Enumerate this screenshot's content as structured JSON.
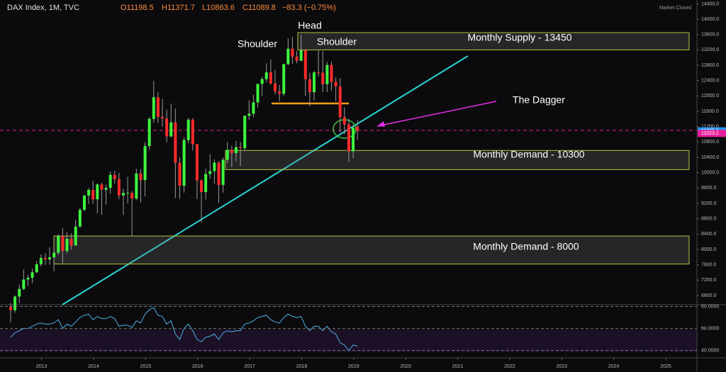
{
  "chart_data": {
    "type": "candlestick",
    "title": "DAX Index, 1M, TVC",
    "ohlc_labels": [
      "O11198.5",
      "H11371.7",
      "L10863.6",
      "C11089.8",
      "−83.3 (−0.75%)"
    ],
    "status": "Market Closed",
    "annotations": [
      "Shoulder",
      "Head",
      "Shoulder",
      "Monthly Supply - 13450",
      "The Dagger",
      "Monthly Demand - 10300",
      "Monthly Demand - 8000"
    ],
    "zones": [
      {
        "top": 13650,
        "bottom": 13200
      },
      {
        "top": 10580,
        "bottom": 10080
      },
      {
        "top": 8350,
        "bottom": 7620
      }
    ],
    "price_tags": [
      {
        "value": 11089.8,
        "label": "11089.8",
        "color": "#2196f3"
      },
      {
        "value": 11023.2,
        "label": "11023.2",
        "color": "#e91e9c"
      }
    ],
    "open": [
      6500,
      6416,
      6772,
      6970,
      7216,
      7260,
      7405,
      7612,
      7776,
      7741,
      7795,
      7914,
      8348,
      7959,
      8276,
      8103,
      8594,
      9033,
      9405,
      9552,
      9306,
      9692,
      9556,
      9603,
      9943,
      9833,
      9407,
      9470,
      9474,
      9327,
      9980,
      9806,
      10694,
      11402,
      11966,
      11454,
      11414,
      10945,
      11309,
      10259,
      9660,
      10850,
      11382,
      10743,
      9798,
      9495,
      9966,
      10039,
      10263,
      9680,
      10337,
      10593,
      10511,
      10665,
      10640,
      11481,
      11535,
      11834,
      12313,
      12438,
      12615,
      12325,
      12118,
      12056,
      12829,
      13230,
      13024,
      12918,
      13189,
      12436,
      12097,
      12612,
      12605,
      12306,
      12806,
      12364,
      12247,
      11447,
      11257,
      10559,
      11198.5
    ],
    "high": [
      6600,
      6800,
      7080,
      7480,
      7340,
      7500,
      7700,
      7870,
      7900,
      8060,
      8050,
      8400,
      8560,
      8450,
      8420,
      8770,
      9080,
      9420,
      9600,
      9790,
      9720,
      9740,
      9690,
      10030,
      10050,
      10000,
      9580,
      9890,
      9520,
      10100,
      10090,
      10800,
      11450,
      12390,
      12100,
      11920,
      11640,
      11800,
      11670,
      10400,
      10920,
      11430,
      11420,
      10750,
      9830,
      10100,
      10480,
      10350,
      10300,
      10400,
      10800,
      10700,
      10830,
      10800,
      11500,
      11890,
      12030,
      12320,
      12500,
      12850,
      12950,
      12680,
      12290,
      12840,
      13500,
      13530,
      13170,
      13600,
      13210,
      12600,
      12650,
      13200,
      13170,
      12890,
      12890,
      12480,
      12460,
      11700,
      11400,
      11250,
      11371.7
    ],
    "low": [
      6100,
      6350,
      6600,
      6930,
      7050,
      7120,
      7380,
      7560,
      7600,
      7600,
      7430,
      7860,
      7640,
      7900,
      8000,
      8100,
      8570,
      9000,
      9190,
      9190,
      8940,
      8900,
      9170,
      9450,
      9720,
      9310,
      8900,
      9200,
      8350,
      9280,
      9220,
      9380,
      10600,
      11300,
      11300,
      11200,
      10790,
      10920,
      9340,
      9320,
      9480,
      10770,
      10580,
      9310,
      8700,
      9300,
      9840,
      9710,
      9210,
      9480,
      10250,
      10150,
      10300,
      10170,
      10560,
      11380,
      11450,
      11700,
      12000,
      12350,
      12300,
      12040,
      11860,
      12000,
      12800,
      12840,
      12850,
      12900,
      12000,
      11730,
      11880,
      12500,
      12100,
      12100,
      12140,
      11860,
      11050,
      11000,
      10280,
      10380,
      10863.6
    ],
    "close": [
      6416,
      6772,
      6970,
      7216,
      7260,
      7405,
      7612,
      7776,
      7741,
      7795,
      7914,
      8348,
      7959,
      8276,
      8103,
      8594,
      9033,
      9405,
      9552,
      9306,
      9692,
      9556,
      9603,
      9943,
      9833,
      9407,
      9470,
      9474,
      9327,
      9980,
      9806,
      10694,
      11402,
      11966,
      11454,
      11414,
      10945,
      11309,
      10259,
      9660,
      10850,
      11382,
      10743,
      9798,
      9495,
      9966,
      10039,
      10263,
      9680,
      10337,
      10593,
      10511,
      10665,
      10640,
      11481,
      11535,
      11834,
      12313,
      12438,
      12615,
      12325,
      12118,
      12056,
      12829,
      13230,
      13024,
      12918,
      13189,
      12436,
      12097,
      12612,
      12605,
      12306,
      12806,
      12364,
      12247,
      11447,
      11257,
      10559,
      11173,
      11089.8
    ],
    "rsi": [
      52,
      56,
      58,
      60,
      60,
      62,
      64,
      65,
      64,
      64,
      65,
      68,
      60,
      64,
      62,
      66,
      70,
      72,
      73,
      68,
      71,
      69,
      69,
      71,
      69,
      62,
      63,
      63,
      61,
      67,
      65,
      73,
      77,
      79,
      72,
      71,
      64,
      67,
      55,
      50,
      60,
      64,
      58,
      50,
      48,
      52,
      53,
      55,
      50,
      56,
      58,
      57,
      58,
      58,
      64,
      65,
      67,
      70,
      71,
      72,
      68,
      66,
      65,
      70,
      73,
      71,
      70,
      71,
      62,
      58,
      62,
      62,
      58,
      62,
      57,
      55,
      47,
      45,
      40,
      45,
      44
    ],
    "up_color": "#3df53d",
    "down_color": "#ff2a2a",
    "rsi_color": "#4fb3e8",
    "ylim": [
      6560,
      14500
    ],
    "yticks": [
      {
        "value": 6800,
        "label": "6800.0"
      },
      {
        "value": 7200,
        "label": "7200.0"
      },
      {
        "value": 7600,
        "label": "7600.0"
      },
      {
        "value": 8000,
        "label": "8000.0"
      },
      {
        "value": 8400,
        "label": "8400.0"
      },
      {
        "value": 8800,
        "label": "8800.0"
      },
      {
        "value": 9200,
        "label": "9200.0"
      },
      {
        "value": 9600,
        "label": "9600.0"
      },
      {
        "value": 10000,
        "label": "10000.0"
      },
      {
        "value": 10400,
        "label": "10400.0"
      },
      {
        "value": 10800,
        "label": "10800.0"
      },
      {
        "value": 11200,
        "label": "11200.0"
      },
      {
        "value": 11600,
        "label": "11600.0"
      },
      {
        "value": 12000,
        "label": "12000.0"
      },
      {
        "value": 12400,
        "label": "12400.0"
      },
      {
        "value": 12800,
        "label": "12800.0"
      },
      {
        "value": 13200,
        "label": "13200.0"
      },
      {
        "value": 13600,
        "label": "13600.0"
      },
      {
        "value": 14000,
        "label": "14000.0"
      },
      {
        "value": 14400,
        "label": "14400.0"
      }
    ],
    "y2lim": [
      34,
      81
    ],
    "y2ticks": [
      {
        "value": 40,
        "label": "40.0000"
      },
      {
        "value": 60,
        "label": "60.0000"
      },
      {
        "value": 80,
        "label": "80.0000"
      }
    ],
    "xlim": [
      2012.2,
      2025.6
    ],
    "xticks": [
      2013,
      2014,
      2015,
      2016,
      2017,
      2018,
      2019,
      2020,
      2021,
      2022,
      2023,
      2024,
      2025
    ]
  }
}
